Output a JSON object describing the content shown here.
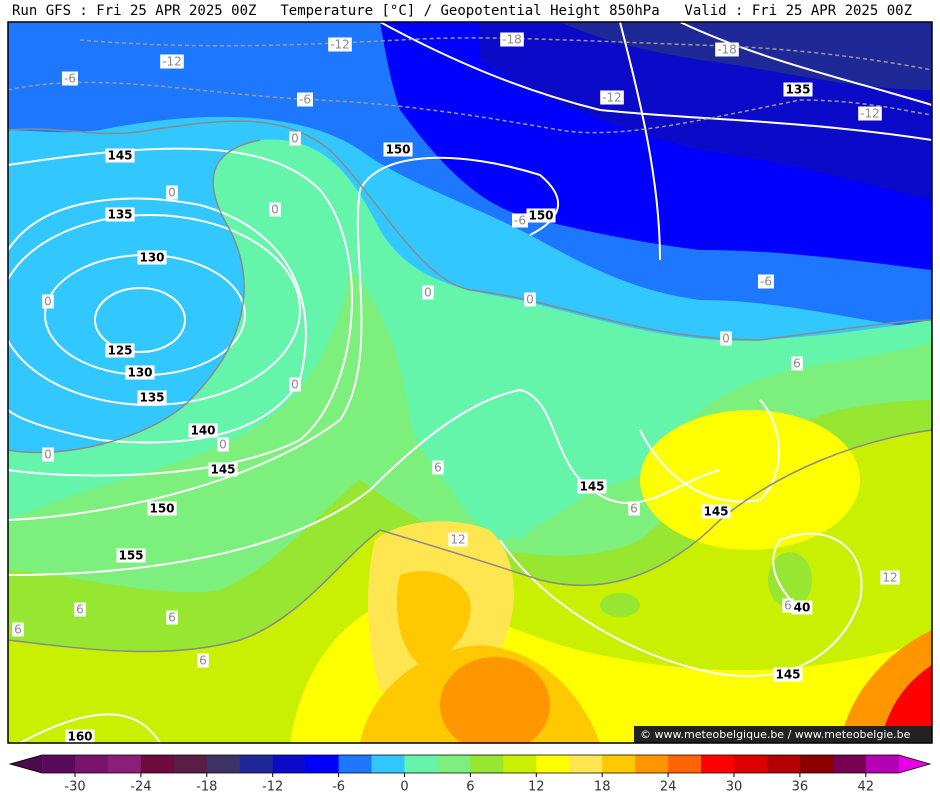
{
  "header": {
    "left": "Run GFS : Fri 25 APR 2025 00Z",
    "center": "Temperature [°C] / Geopotential Height 850hPa",
    "right": "Valid : Fri 25 APR 2025 00Z"
  },
  "height_labels": [
    "135",
    "145",
    "150",
    "135",
    "150",
    "130",
    "125",
    "130",
    "135",
    "140",
    "145",
    "145",
    "150",
    "145",
    "155",
    "40",
    "145",
    "160"
  ],
  "temperature_labels": [
    "-12",
    "-18",
    "-18",
    "-12",
    "-6",
    "-6",
    "-12",
    "-12",
    "0",
    "0",
    "0",
    "-6",
    "0",
    "0",
    "-6",
    "0",
    "0",
    "6",
    "0",
    "0",
    "0",
    "6",
    "6",
    "12",
    "12",
    "6",
    "6",
    "6",
    "6",
    "6"
  ],
  "watermark": "© www.meteobelgique.be / www.meteobelgie.be",
  "colorbar": {
    "range": [
      -33,
      45
    ],
    "ticks": [
      -30,
      -24,
      -18,
      -12,
      -6,
      0,
      6,
      12,
      18,
      24,
      30,
      36,
      42
    ],
    "colors": [
      "#5a0a5a",
      "#78146e",
      "#8c1e78",
      "#6e0a3c",
      "#5a1e46",
      "#3c3264",
      "#1e2896",
      "#0a0ac8",
      "#0000ff",
      "#1e78ff",
      "#32c8ff",
      "#64f5aa",
      "#7cef7c",
      "#96e632",
      "#c8f000",
      "#ffff00",
      "#ffe650",
      "#ffc800",
      "#ff9600",
      "#ff6400",
      "#ff0000",
      "#dc0000",
      "#b40000",
      "#8c0000",
      "#780050",
      "#b400b4"
    ],
    "below_color": "#4b0a4b",
    "above_color": "#e600e6"
  }
}
